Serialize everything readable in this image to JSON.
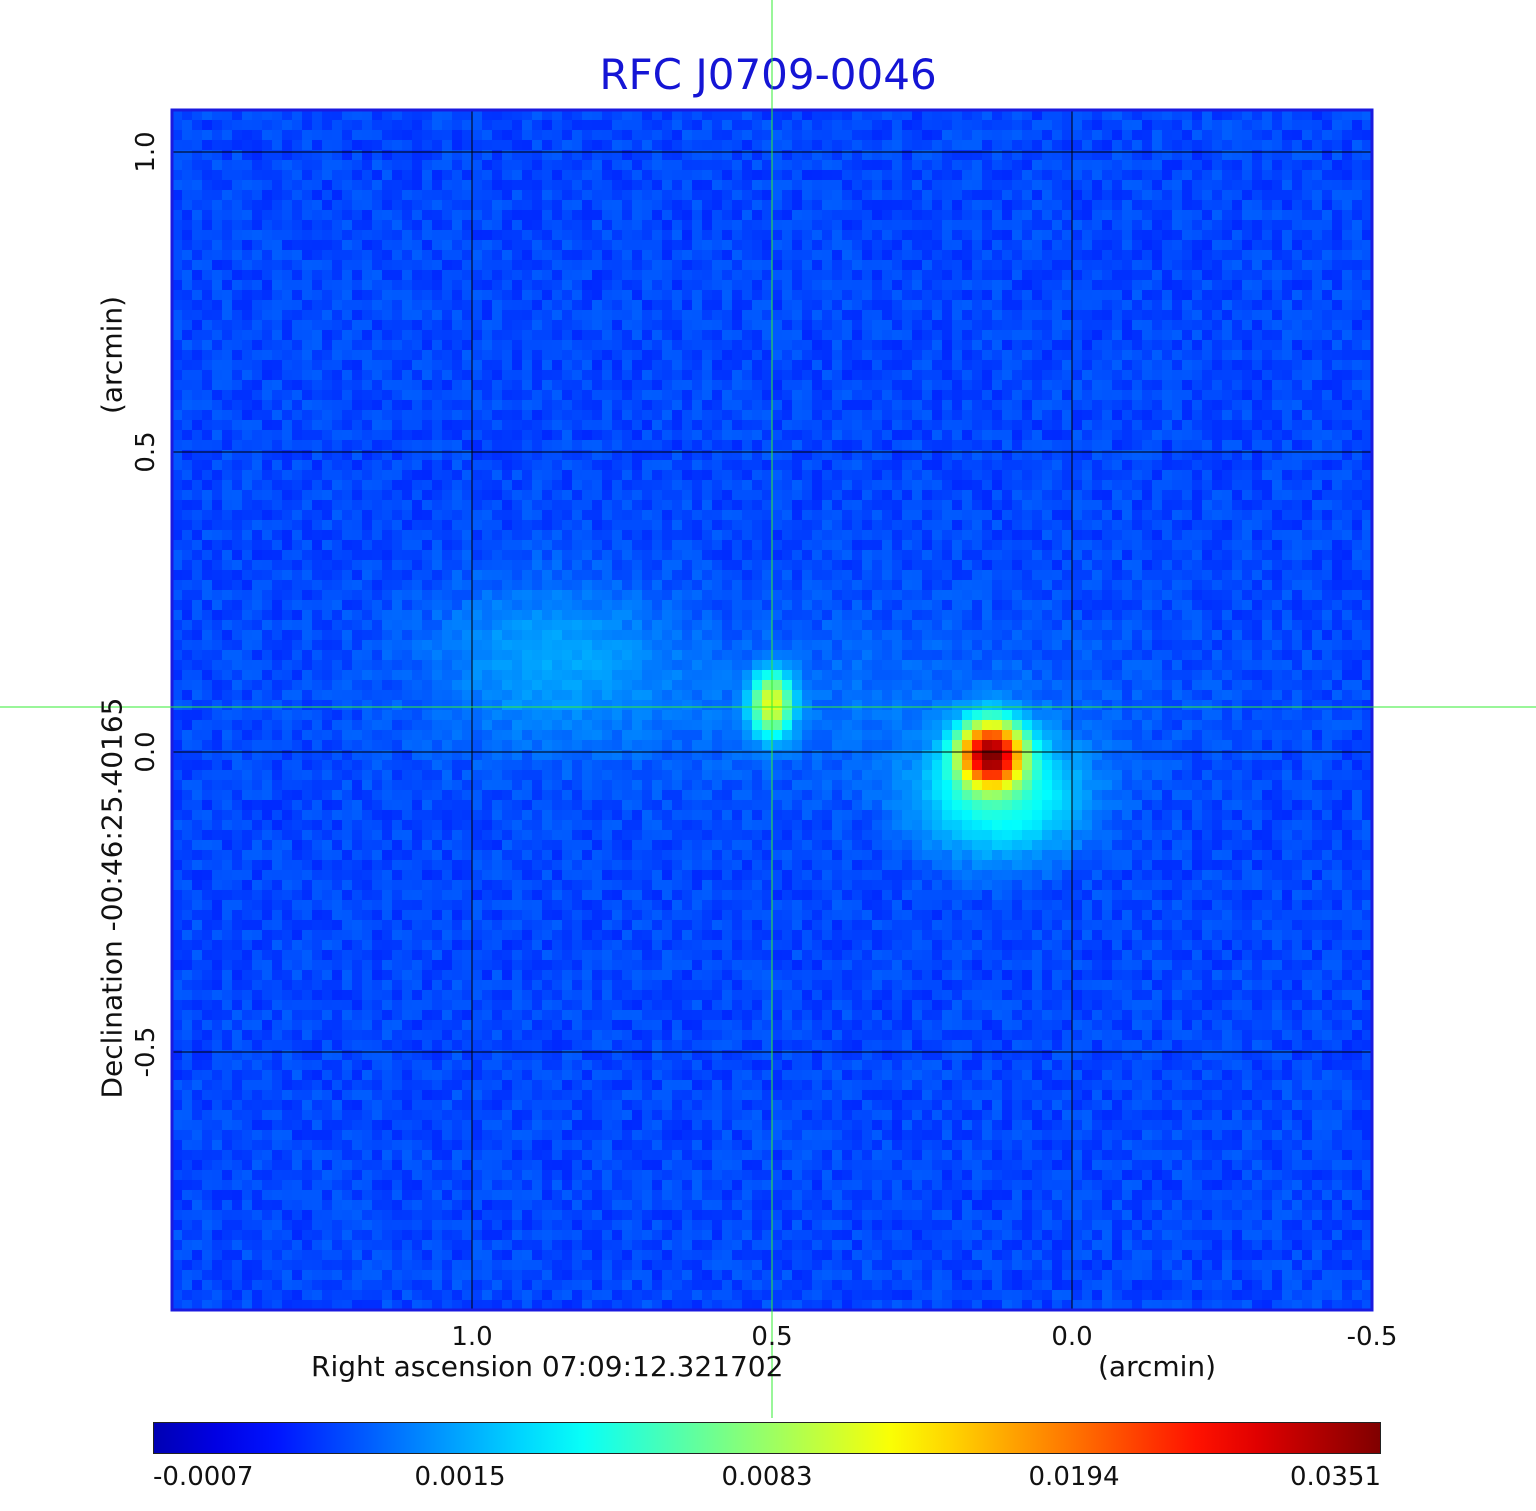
{
  "title": "RFC J0709-0046",
  "x_axis": {
    "label": "Right ascension  07:09:12.321702",
    "unit": "(arcmin)",
    "ticks": [
      {
        "value": 1.0,
        "label": "1.0"
      },
      {
        "value": 0.5,
        "label": "0.5"
      },
      {
        "value": 0.0,
        "label": "0.0"
      },
      {
        "value": -0.5,
        "label": "-0.5"
      }
    ]
  },
  "y_axis": {
    "label": "Declination  -00:46:25.40165",
    "unit": "(arcmin)",
    "ticks": [
      {
        "value": 1.0,
        "label": "1.0"
      },
      {
        "value": 0.5,
        "label": "0.5"
      },
      {
        "value": 0.0,
        "label": "0.0"
      },
      {
        "value": -0.5,
        "label": "-0.5"
      }
    ]
  },
  "colorbar": {
    "ticks": [
      "-0.0007",
      "0.0015",
      "0.0083",
      "0.0194",
      "0.0351"
    ],
    "colormap": "jet"
  },
  "colors": {
    "title": "#1515d5",
    "crosshair": "#33ee33",
    "frame": "#1a1ae0",
    "grid": "#000000"
  },
  "chart_data": {
    "type": "heatmap",
    "title": "RFC J0709-0046",
    "xlabel": "Right ascension  07:09:12.321702",
    "ylabel": "Declination  -00:46:25.40165",
    "xlim": [
      1.5,
      -0.5
    ],
    "ylim": [
      -0.93,
      1.07
    ],
    "crosshair": {
      "x": 0.5,
      "y": 0.075
    },
    "sources": [
      {
        "x": 0.5,
        "y": 0.08,
        "peak": 0.011
      },
      {
        "x": 0.135,
        "y": -0.005,
        "peak": 0.0351
      },
      {
        "x": 0.87,
        "y": 0.15,
        "peak": 0.003
      }
    ],
    "color_range": [
      -0.0007,
      0.0351
    ]
  }
}
